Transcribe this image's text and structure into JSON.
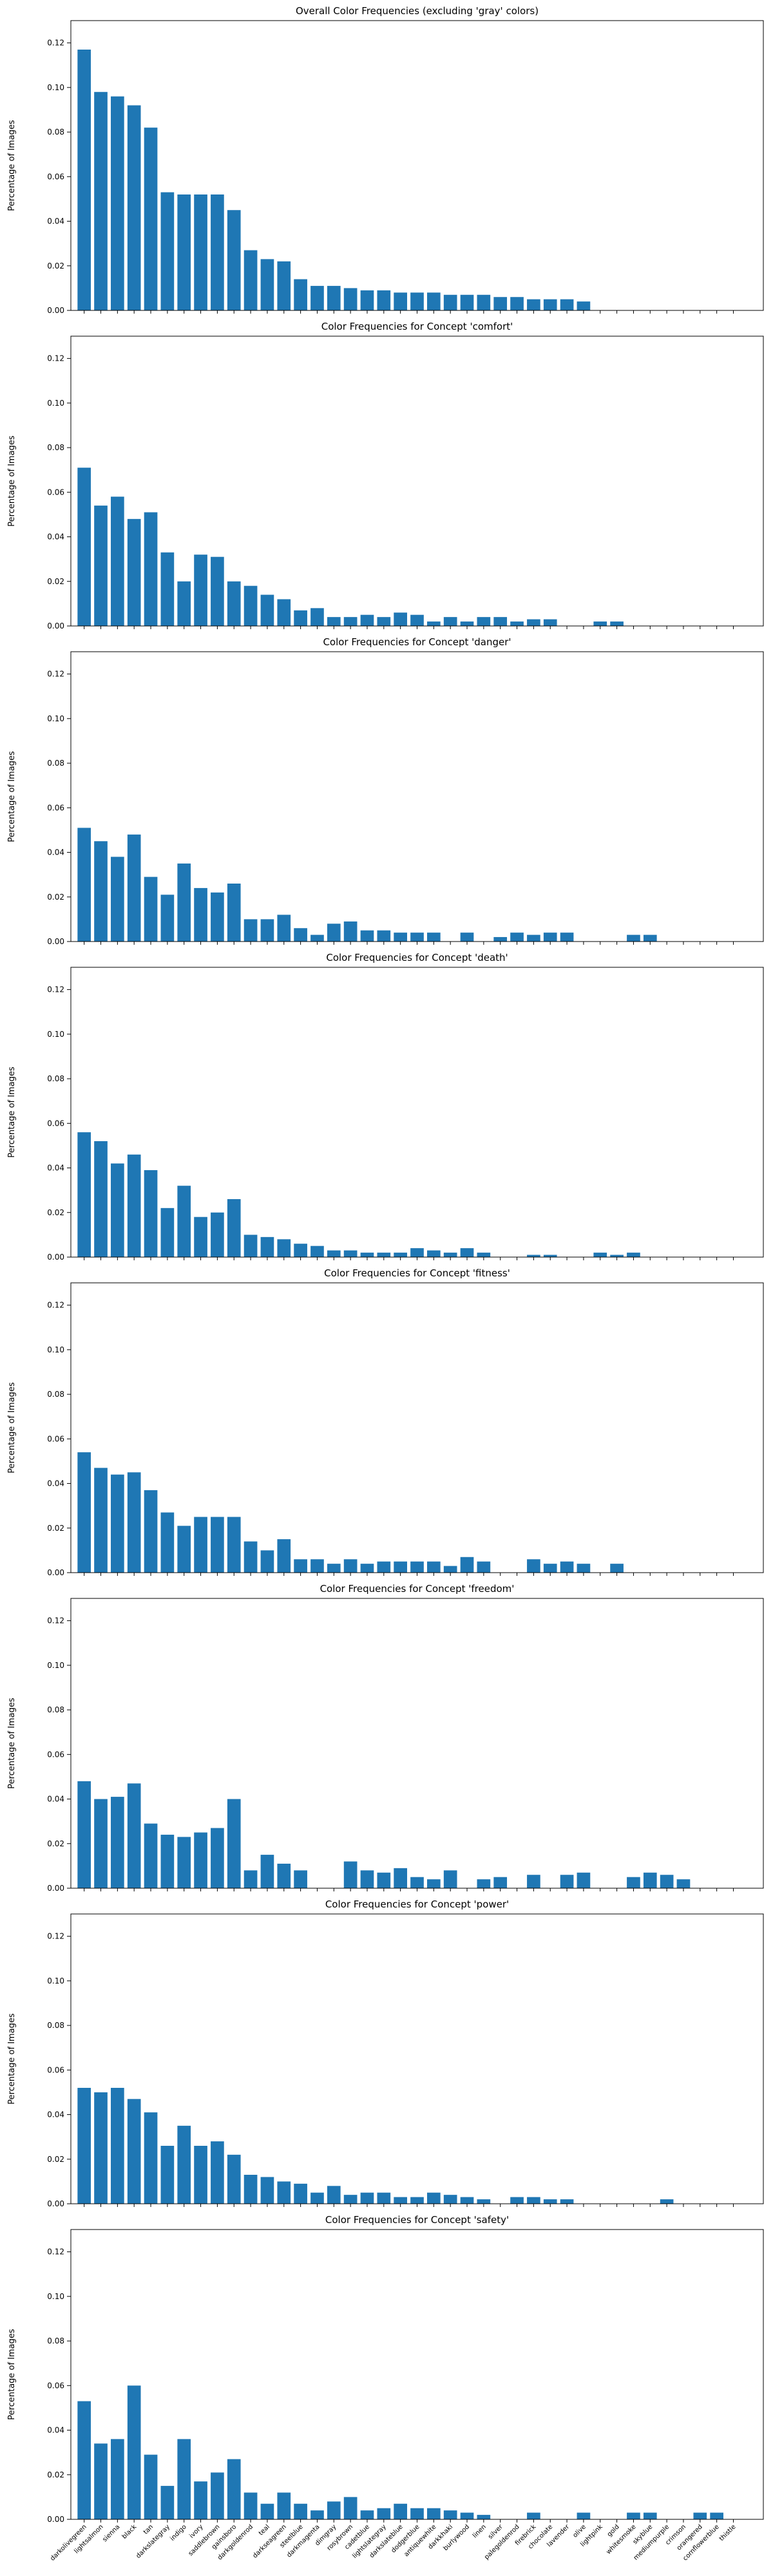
{
  "chart_data": {
    "type": "bar",
    "layout": "vertical-stack",
    "ylabel": "Percentage of Images",
    "ylim": [
      0,
      0.13
    ],
    "yticks": [
      "0.00",
      "0.02",
      "0.04",
      "0.06",
      "0.08",
      "0.10",
      "0.12"
    ],
    "grid": false,
    "bar_color": "#1f77b4",
    "categories": [
      "darkolivegreen",
      "lightsalmon",
      "sienna",
      "black",
      "tan",
      "darkslategray",
      "indigo",
      "ivory",
      "saddlebrown",
      "gainsboro",
      "darkgoldenrod",
      "teal",
      "darkseagreen",
      "steelblue",
      "darkmagenta",
      "dimgray",
      "rosybrown",
      "cadetblue",
      "lightslategray",
      "darkslateblue",
      "dodgerblue",
      "antiquewhite",
      "darkkhaki",
      "burlywood",
      "linen",
      "silver",
      "palegoldenrod",
      "firebrick",
      "chocolate",
      "lavender",
      "olive",
      "lightpink",
      "gold",
      "whitesmoke",
      "skyblue",
      "mediumpurple",
      "crimson",
      "orangered",
      "cornflowerblue",
      "thistle"
    ],
    "panels": [
      {
        "title": "Overall Color Frequencies (excluding 'gray' colors)",
        "values": [
          0.117,
          0.098,
          0.096,
          0.092,
          0.082,
          0.053,
          0.052,
          0.052,
          0.052,
          0.045,
          0.027,
          0.023,
          0.022,
          0.014,
          0.011,
          0.011,
          0.01,
          0.009,
          0.009,
          0.008,
          0.008,
          0.008,
          0.007,
          0.007,
          0.007,
          0.006,
          0.006,
          0.005,
          0.005,
          0.005,
          0.004,
          0,
          0,
          0,
          0,
          0,
          0,
          0,
          0,
          0
        ]
      },
      {
        "title": "Color Frequencies for Concept 'comfort'",
        "values": [
          0.071,
          0.054,
          0.058,
          0.048,
          0.051,
          0.033,
          0.02,
          0.032,
          0.031,
          0.02,
          0.018,
          0.014,
          0.012,
          0.007,
          0.008,
          0.004,
          0.004,
          0.005,
          0.004,
          0.006,
          0.005,
          0.002,
          0.004,
          0.002,
          0.004,
          0.004,
          0.002,
          0.003,
          0.003,
          0,
          0,
          0.002,
          0.002,
          0,
          0,
          0,
          0,
          0,
          0,
          0
        ]
      },
      {
        "title": "Color Frequencies for Concept 'danger'",
        "values": [
          0.051,
          0.045,
          0.038,
          0.048,
          0.029,
          0.021,
          0.035,
          0.024,
          0.022,
          0.026,
          0.01,
          0.01,
          0.012,
          0.006,
          0.003,
          0.008,
          0.009,
          0.005,
          0.005,
          0.004,
          0.004,
          0.004,
          0,
          0.004,
          0,
          0.002,
          0.004,
          0.003,
          0.004,
          0.004,
          0,
          0,
          0,
          0.003,
          0.003,
          0,
          0,
          0,
          0,
          0
        ]
      },
      {
        "title": "Color Frequencies for Concept 'death'",
        "values": [
          0.056,
          0.052,
          0.042,
          0.046,
          0.039,
          0.022,
          0.032,
          0.018,
          0.02,
          0.026,
          0.01,
          0.009,
          0.008,
          0.006,
          0.005,
          0.003,
          0.003,
          0.002,
          0.002,
          0.002,
          0.004,
          0.003,
          0.002,
          0.004,
          0.002,
          0,
          0,
          0.001,
          0.001,
          0,
          0,
          0.002,
          0.001,
          0.002,
          0,
          0,
          0,
          0,
          0,
          0
        ]
      },
      {
        "title": "Color Frequencies for Concept 'fitness'",
        "values": [
          0.054,
          0.047,
          0.044,
          0.045,
          0.037,
          0.027,
          0.021,
          0.025,
          0.025,
          0.025,
          0.014,
          0.01,
          0.015,
          0.006,
          0.006,
          0.004,
          0.006,
          0.004,
          0.005,
          0.005,
          0.005,
          0.005,
          0.003,
          0.007,
          0.005,
          0,
          0,
          0.006,
          0.004,
          0.005,
          0.004,
          0,
          0.004,
          0,
          0,
          0,
          0,
          0,
          0,
          0
        ]
      },
      {
        "title": "Color Frequencies for Concept 'freedom'",
        "values": [
          0.048,
          0.04,
          0.041,
          0.047,
          0.029,
          0.024,
          0.023,
          0.025,
          0.027,
          0.04,
          0.008,
          0.015,
          0.011,
          0.008,
          0,
          0,
          0.012,
          0.008,
          0.007,
          0.009,
          0.005,
          0.004,
          0.008,
          0,
          0.004,
          0.005,
          0,
          0.006,
          0,
          0.006,
          0.007,
          0,
          0,
          0.005,
          0.007,
          0.006,
          0.004,
          0,
          0,
          0
        ]
      },
      {
        "title": "Color Frequencies for Concept 'power'",
        "values": [
          0.052,
          0.05,
          0.052,
          0.047,
          0.041,
          0.026,
          0.035,
          0.026,
          0.028,
          0.022,
          0.013,
          0.012,
          0.01,
          0.009,
          0.005,
          0.008,
          0.004,
          0.005,
          0.005,
          0.003,
          0.003,
          0.005,
          0.004,
          0.003,
          0.002,
          0,
          0.003,
          0.003,
          0.002,
          0.002,
          0,
          0,
          0,
          0,
          0,
          0.002,
          0,
          0,
          0,
          0
        ]
      },
      {
        "title": "Color Frequencies for Concept 'safety'",
        "values": [
          0.053,
          0.034,
          0.036,
          0.06,
          0.029,
          0.015,
          0.036,
          0.017,
          0.021,
          0.027,
          0.012,
          0.007,
          0.012,
          0.007,
          0.004,
          0.008,
          0.01,
          0.004,
          0.005,
          0.007,
          0.005,
          0.005,
          0.004,
          0.003,
          0.002,
          0,
          0,
          0.003,
          0,
          0,
          0.003,
          0,
          0,
          0.003,
          0.003,
          0,
          0,
          0.003,
          0.003,
          0
        ]
      }
    ]
  }
}
